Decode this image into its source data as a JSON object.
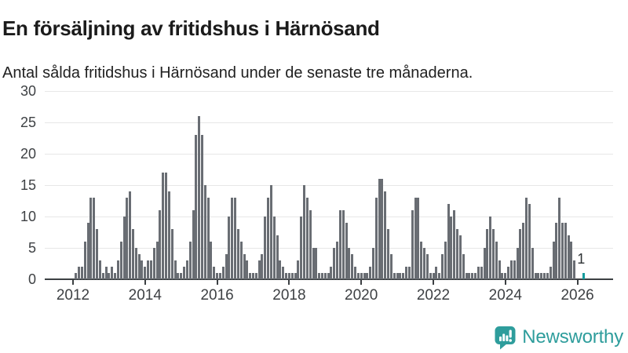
{
  "header": {
    "title": "En försäljning av fritidshus i Härnösand",
    "subtitle": "Antal sålda fritidshus i Härnösand under de senaste tre månaderna."
  },
  "chart_data": {
    "type": "bar",
    "title": "En försäljning av fritidshus i Härnösand",
    "subtitle": "Antal sålda fritidshus i Härnösand under de senaste tre månaderna.",
    "x_start_month": "2012-01",
    "x_end_month": "2026-03",
    "yticks": [
      0,
      5,
      10,
      15,
      20,
      25,
      30
    ],
    "ylim": [
      0,
      30
    ],
    "xticks": [
      2012,
      2014,
      2016,
      2018,
      2020,
      2022,
      2024,
      2026
    ],
    "grid": "horizontal",
    "legend": "none",
    "bar_color": "#696d73",
    "highlight_color": "#149c9d",
    "annotation": {
      "text": "1",
      "target": "last-bar"
    },
    "values": [
      0,
      1,
      2,
      2,
      6,
      9,
      13,
      13,
      8,
      3,
      1,
      2,
      1,
      2,
      1,
      3,
      6,
      10,
      13,
      14,
      8,
      5,
      4,
      3,
      2,
      3,
      3,
      5,
      6,
      11,
      17,
      17,
      14,
      8,
      3,
      1,
      1,
      2,
      3,
      6,
      11,
      23,
      26,
      23,
      15,
      13,
      6,
      2,
      1,
      1,
      2,
      4,
      10,
      13,
      13,
      8,
      6,
      4,
      3,
      1,
      1,
      1,
      3,
      4,
      10,
      13,
      15,
      10,
      7,
      3,
      2,
      1,
      1,
      1,
      1,
      3,
      10,
      15,
      13,
      11,
      5,
      5,
      1,
      1,
      1,
      1,
      2,
      5,
      6,
      11,
      11,
      9,
      5,
      4,
      2,
      1,
      1,
      1,
      1,
      2,
      5,
      13,
      16,
      16,
      14,
      8,
      4,
      1,
      1,
      1,
      1,
      2,
      2,
      11,
      13,
      13,
      6,
      5,
      4,
      1,
      1,
      2,
      1,
      4,
      6,
      12,
      10,
      11,
      8,
      7,
      4,
      1,
      1,
      1,
      1,
      2,
      2,
      5,
      8,
      10,
      8,
      6,
      3,
      1,
      1,
      2,
      3,
      3,
      5,
      8,
      9,
      13,
      12,
      5,
      1,
      1,
      1,
      1,
      1,
      2,
      6,
      9,
      13,
      9,
      9,
      7,
      6,
      3,
      0,
      0,
      1
    ]
  },
  "footer": {
    "brand": "Newsworthy",
    "brand_color": "#2e9d9c",
    "logo_icon": "speech-bubble-bar-chart-icon"
  }
}
